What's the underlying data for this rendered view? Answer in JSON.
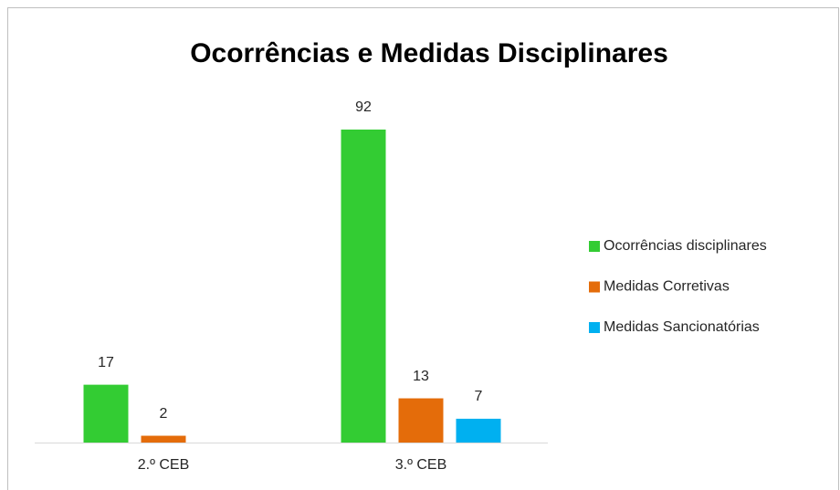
{
  "chart_data": {
    "type": "bar",
    "title": "Ocorrências e Medidas Disciplinares",
    "categories": [
      "2.º CEB",
      "3.º CEB"
    ],
    "series": [
      {
        "name": "Ocorrências disciplinares",
        "color": "#33cc33",
        "values": [
          17,
          92
        ]
      },
      {
        "name": "Medidas Corretivas",
        "color": "#e46c0a",
        "values": [
          2,
          13
        ]
      },
      {
        "name": "Medidas Sancionatórias",
        "color": "#00b0f0",
        "values": [
          null,
          7
        ]
      }
    ],
    "legend": "right"
  }
}
